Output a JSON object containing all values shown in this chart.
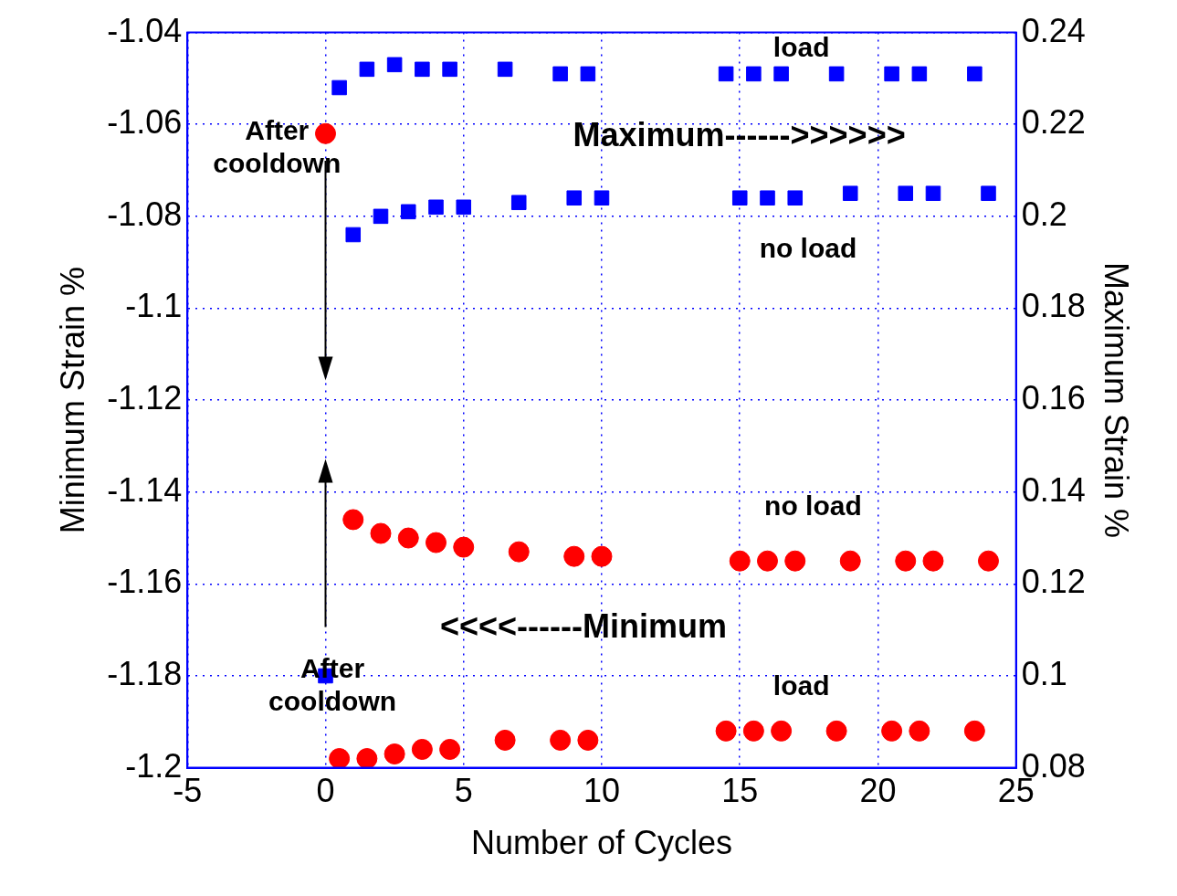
{
  "chart_data": {
    "type": "scatter",
    "xlabel": "Number of Cycles",
    "ylabel": "Minimum Strain %",
    "y2label": "Maximum Strain %",
    "xlim": [
      -5,
      25
    ],
    "xticks": [
      -5,
      0,
      5,
      10,
      15,
      20,
      25
    ],
    "ylim": [
      -1.2,
      -1.04
    ],
    "yticks": [
      -1.2,
      -1.18,
      -1.16,
      -1.14,
      -1.12,
      -1.1,
      -1.08,
      -1.06,
      -1.04
    ],
    "y2lim": [
      0.08,
      0.24
    ],
    "y2ticks": [
      0.08,
      0.1,
      0.12,
      0.14,
      0.16,
      0.18,
      0.2,
      0.22,
      0.24
    ],
    "grid": true,
    "legend": false,
    "series": [
      {
        "color": "#ff0000",
        "marker": "circle",
        "x": [
          0,
          1,
          2,
          3,
          4,
          5,
          7,
          9,
          10,
          15,
          16,
          17,
          19,
          21,
          22,
          24,
          0.5,
          1.5,
          2.5,
          3.5,
          4.5,
          6.5,
          8.5,
          9.5,
          14.5,
          15.5,
          16.5,
          18.5,
          20.5,
          21.5,
          23.5
        ],
        "values": [
          -1.062,
          -1.146,
          -1.149,
          -1.15,
          -1.151,
          -1.152,
          -1.153,
          -1.154,
          -1.154,
          -1.155,
          -1.155,
          -1.155,
          -1.155,
          -1.155,
          -1.155,
          -1.155,
          -1.198,
          -1.198,
          -1.197,
          -1.196,
          -1.196,
          -1.194,
          -1.194,
          -1.194,
          -1.192,
          -1.192,
          -1.192,
          -1.192,
          -1.192,
          -1.192,
          -1.192
        ]
      },
      {
        "color": "#0000ff",
        "marker": "square",
        "axis": "y2",
        "x": [
          0,
          1,
          2,
          3,
          4,
          5,
          7,
          9,
          10,
          15,
          16,
          17,
          19,
          21,
          22,
          24,
          0.5,
          1.5,
          2.5,
          3.5,
          4.5,
          6.5,
          8.5,
          9.5,
          14.5,
          15.5,
          16.5,
          18.5,
          20.5,
          21.5,
          23.5
        ],
        "values": [
          0.1,
          0.196,
          0.2,
          0.201,
          0.202,
          0.202,
          0.203,
          0.204,
          0.204,
          0.204,
          0.204,
          0.204,
          0.205,
          0.205,
          0.205,
          0.205,
          0.228,
          0.232,
          0.233,
          0.232,
          0.232,
          0.232,
          0.231,
          0.231,
          0.231,
          0.231,
          0.231,
          0.231,
          0.231,
          0.231,
          0.231
        ]
      }
    ],
    "annotations": [
      "After cooldown",
      "After cooldown",
      "load",
      "Maximum------>>>>>>",
      "no load",
      "no load",
      "<<<<------Minimum",
      "load"
    ]
  }
}
